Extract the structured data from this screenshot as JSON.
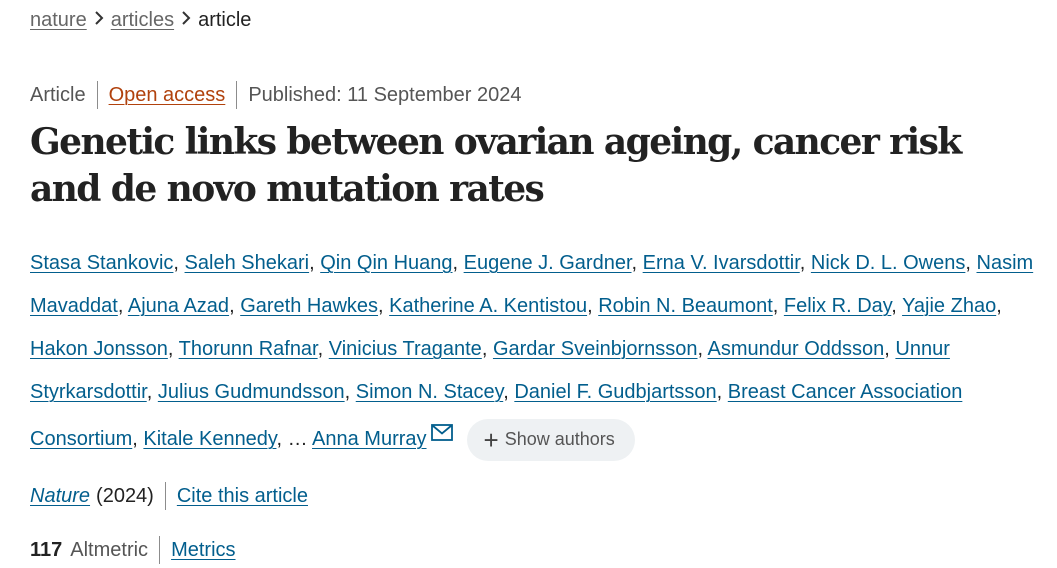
{
  "breadcrumb": {
    "items": [
      {
        "label": "nature"
      },
      {
        "label": "articles"
      }
    ],
    "current": "article"
  },
  "article": {
    "type": "Article",
    "access": "Open access",
    "published": "Published: 11 September 2024",
    "title": "Genetic links between ovarian ageing, cancer risk and de novo mutation rates",
    "authors": [
      "Stasa Stankovic",
      "Saleh Shekari",
      "Qin Qin Huang",
      "Eugene J. Gardner",
      "Erna V. Ivarsdottir",
      "Nick D. L. Owens",
      "Nasim Mavaddat",
      "Ajuna Azad",
      "Gareth Hawkes",
      "Katherine A. Kentistou",
      "Robin N. Beaumont",
      "Felix R. Day",
      "Yajie Zhao",
      "Hakon Jonsson",
      "Thorunn Rafnar",
      "Vinicius Tragante",
      "Gardar Sveinbjornsson",
      "Asmundur Oddsson",
      "Unnur Styrkarsdottir",
      "Julius Gudmundsson",
      "Simon N. Stacey",
      "Daniel F. Gudbjartsson",
      "Breast Cancer Association Consortium",
      "Kitale Kennedy"
    ],
    "ellipsis": "…",
    "last_author": "Anna Murray",
    "show_authors_label": "Show authors",
    "journal": "Nature",
    "year": "(2024)",
    "cite_label": "Cite this article",
    "altmetric_score": "117",
    "altmetric_label": "Altmetric",
    "metrics_label": "Metrics"
  },
  "icons": {
    "separator": "chevron-right-icon",
    "contact": "mail-icon",
    "expand": "plus-icon"
  },
  "colors": {
    "link": "#025e8d",
    "open_access": "#b1420d",
    "button_bg": "#eef1f3"
  }
}
